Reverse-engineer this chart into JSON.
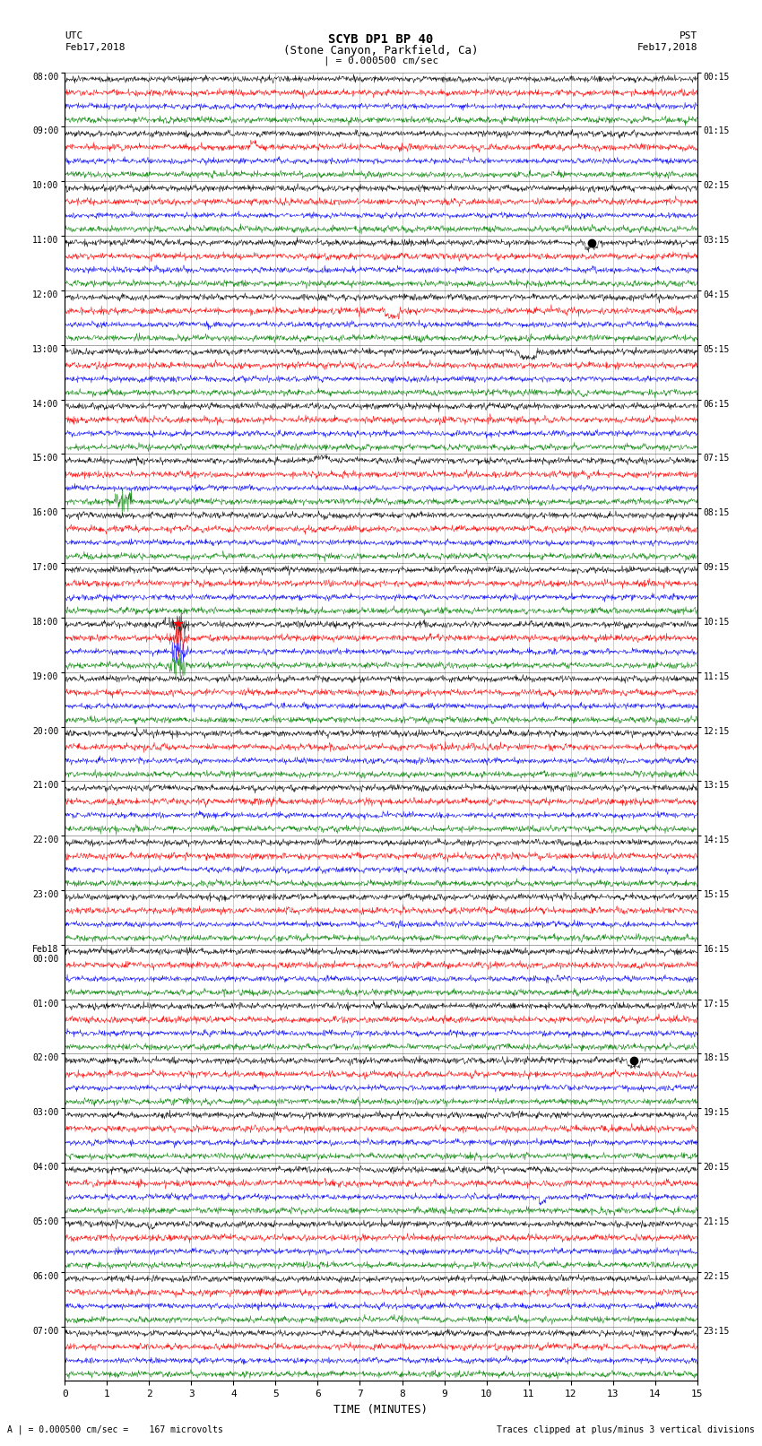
{
  "title_line1": "SCYB DP1 BP 40",
  "title_line2": "(Stone Canyon, Parkfield, Ca)",
  "scale_label": "| = 0.000500 cm/sec",
  "left_label_top": "UTC",
  "left_label_date": "Feb17,2018",
  "right_label_top": "PST",
  "right_label_date": "Feb17,2018",
  "xlabel": "TIME (MINUTES)",
  "footer_left": "A | = 0.000500 cm/sec =    167 microvolts",
  "footer_right": "Traces clipped at plus/minus 3 vertical divisions",
  "utc_hour_labels": [
    "08:00",
    "09:00",
    "10:00",
    "11:00",
    "12:00",
    "13:00",
    "14:00",
    "15:00",
    "16:00",
    "17:00",
    "18:00",
    "19:00",
    "20:00",
    "21:00",
    "22:00",
    "23:00",
    "Feb18\n00:00",
    "01:00",
    "02:00",
    "03:00",
    "04:00",
    "05:00",
    "06:00",
    "07:00"
  ],
  "pst_hour_labels": [
    "00:15",
    "01:15",
    "02:15",
    "03:15",
    "04:15",
    "05:15",
    "06:15",
    "07:15",
    "08:15",
    "09:15",
    "10:15",
    "11:15",
    "12:15",
    "13:15",
    "14:15",
    "15:15",
    "16:15",
    "17:15",
    "18:15",
    "19:15",
    "20:15",
    "21:15",
    "22:15",
    "23:15"
  ],
  "n_hours": 24,
  "n_channels": 4,
  "colors": [
    "black",
    "red",
    "blue",
    "green"
  ],
  "bg_color": "white",
  "xlim": [
    0,
    15
  ],
  "xticks": [
    0,
    1,
    2,
    3,
    4,
    5,
    6,
    7,
    8,
    9,
    10,
    11,
    12,
    13,
    14,
    15
  ],
  "fig_width": 8.5,
  "fig_height": 16.13,
  "dpi": 100,
  "event_row_red_star": 10,
  "event_col_red_star": 2.7,
  "event_row_black_dot1": 3,
  "event_col_black_dot1": 12.5,
  "event_row_black_dot2": 18,
  "event_col_black_dot2": 13.5,
  "event_row_green_spike": 7,
  "event_col_green_spike": 1.3
}
